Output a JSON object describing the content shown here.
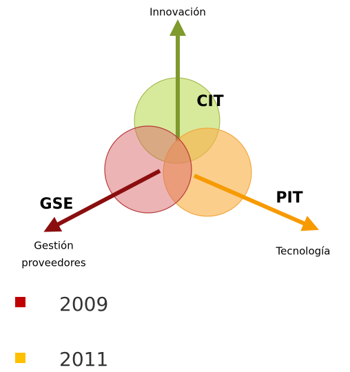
{
  "circles": [
    {
      "label": "CIT"
    },
    {
      "label": "GSE"
    },
    {
      "label": "PIT"
    }
  ],
  "axes": [
    {
      "lines": [
        "Innovación"
      ]
    },
    {
      "lines": [
        "Gestión",
        "proveedores"
      ]
    },
    {
      "lines": [
        "Tecnología"
      ]
    }
  ],
  "legend": [
    {
      "label": "2009"
    },
    {
      "label": "2011"
    }
  ]
}
